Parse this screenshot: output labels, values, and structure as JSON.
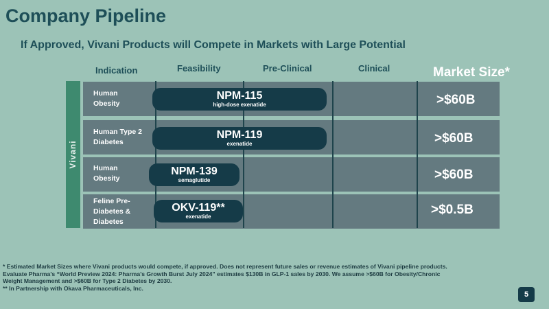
{
  "title": "Company Pipeline",
  "subtitle": "If Approved, Vivani Products will Compete in Markets with Large Potential",
  "columns": {
    "indication": "Indication",
    "feasibility": "Feasibility",
    "preclinical": "Pre-Clinical",
    "clinical": "Clinical",
    "market_size": "Market Size*"
  },
  "side_label": "Vivani",
  "rows": [
    {
      "indication_line1": "Human",
      "indication_line2": "Obesity",
      "indication_line3": "",
      "product": "NPM-115",
      "drug": "high-dose exenatide",
      "market": ">$60B"
    },
    {
      "indication_line1": "Human Type 2",
      "indication_line2": "Diabetes",
      "indication_line3": "",
      "product": "NPM-119",
      "drug": "exenatide",
      "market": ">$60B"
    },
    {
      "indication_line1": "Human",
      "indication_line2": "Obesity",
      "indication_line3": "",
      "product": "NPM-139",
      "drug": "semaglutide",
      "market": ">$60B"
    },
    {
      "indication_line1": "Feline Pre-",
      "indication_line2": "Diabetes &",
      "indication_line3": "Diabetes",
      "product": "OKV-119**",
      "drug": "exenatide",
      "market": ">$0.5B"
    }
  ],
  "footnotes": {
    "line1": "* Estimated Market Sizes where Vivani products would compete, if approved. Does not represent future sales or revenue estimates of Vivani pipeline products.",
    "line2": "Evaluate Pharma’s “World Preview 2024: Pharma’s Growth Burst July 2024” estimates $130B in GLP-1 sales by 2030. We assume >$60B for Obesity/Chronic",
    "line3": "Weight Management and >$60B for Type 2 Diabetes by 2030.",
    "line4": "** In Partnership with Okava Pharmaceuticals, Inc."
  },
  "page_number": "5"
}
